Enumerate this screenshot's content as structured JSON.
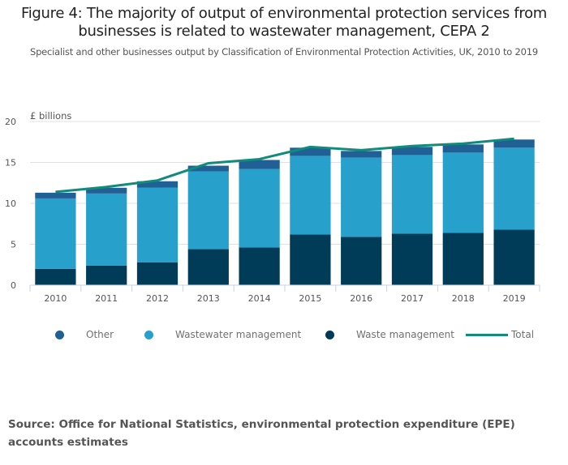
{
  "title": "Figure 4: The majority of output of environmental protection services from businesses is related to wastewater management, CEPA 2",
  "title_line1": "Figure 4: The majority of output of environmental protection services from",
  "title_line2": "businesses is related to wastewater management, CEPA 2",
  "subtitle": "Specialist and other businesses output by Classification of Environmental Protection Activities, UK, 2010 to 2019",
  "source": "Source: Office for National Statistics, environmental protection expenditure (EPE) accounts estimates",
  "colors": {
    "other": "#206095",
    "wastewater": "#27a0cc",
    "waste": "#003c57",
    "total": "#118c7b"
  },
  "chart_data": {
    "type": "bar",
    "stacked": true,
    "title": "Figure 4: The majority of output of environmental protection services from businesses is related to wastewater management, CEPA 2",
    "subtitle": "Specialist and other businesses output by Classification of Environmental Protection Activities, UK, 2010 to 2019",
    "xlabel": "",
    "ylabel": "£ billions",
    "ylim": [
      0,
      20
    ],
    "yticks": [
      0,
      5,
      10,
      15,
      20
    ],
    "grid": true,
    "legend_position": "bottom",
    "categories": [
      "2010",
      "2011",
      "2012",
      "2013",
      "2014",
      "2015",
      "2016",
      "2017",
      "2018",
      "2019"
    ],
    "series": [
      {
        "name": "Waste management",
        "key": "waste",
        "kind": "bar",
        "values": [
          2.0,
          2.4,
          2.8,
          4.4,
          4.6,
          6.2,
          5.9,
          6.3,
          6.4,
          6.8
        ]
      },
      {
        "name": "Wastewater management",
        "key": "wastewater",
        "kind": "bar",
        "values": [
          8.6,
          8.8,
          9.1,
          9.5,
          9.6,
          9.6,
          9.7,
          9.6,
          9.8,
          10.0
        ]
      },
      {
        "name": "Other",
        "key": "other",
        "kind": "bar",
        "values": [
          0.7,
          0.7,
          0.8,
          0.7,
          1.1,
          1.0,
          0.8,
          1.0,
          1.0,
          1.0
        ]
      },
      {
        "name": "Total",
        "key": "total",
        "kind": "line",
        "values": [
          11.4,
          12.0,
          12.8,
          14.9,
          15.4,
          16.9,
          16.5,
          17.0,
          17.3,
          17.9
        ]
      }
    ],
    "legend": [
      "Other",
      "Wastewater management",
      "Waste management",
      "Total"
    ]
  }
}
